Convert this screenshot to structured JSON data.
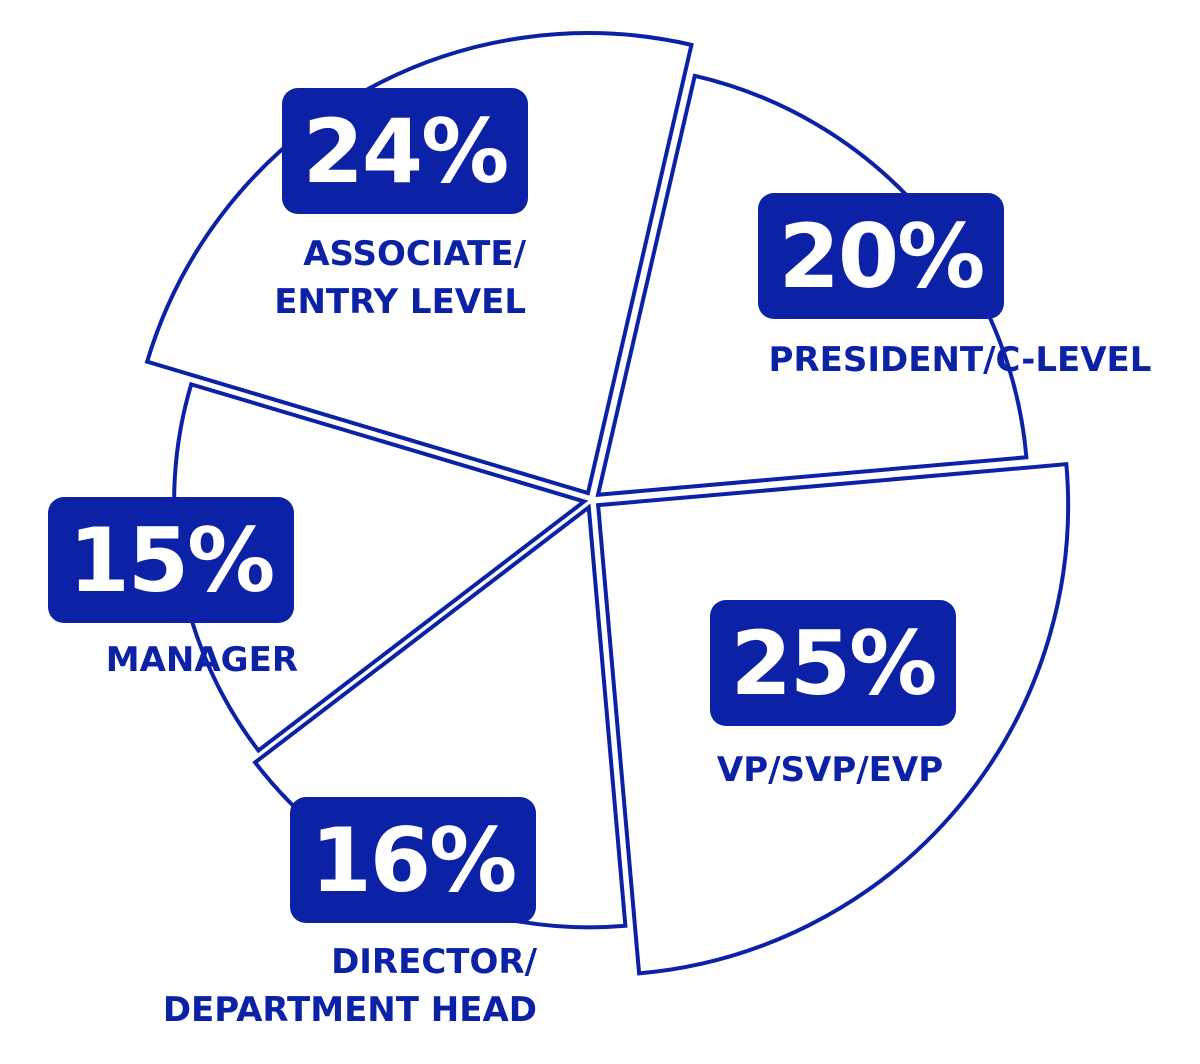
{
  "chart_data": {
    "type": "pie",
    "categories": [
      "PRESIDENT/C-LEVEL",
      "VP/SVP/EVP",
      "DIRECTOR/\nDEPARTMENT HEAD",
      "MANAGER",
      "ASSOCIATE/\nENTRY LEVEL"
    ],
    "values": [
      20,
      25,
      16,
      15,
      24
    ],
    "value_labels": [
      "20%",
      "25%",
      "16%",
      "15%",
      "24%"
    ],
    "color": "#0b22a6"
  }
}
